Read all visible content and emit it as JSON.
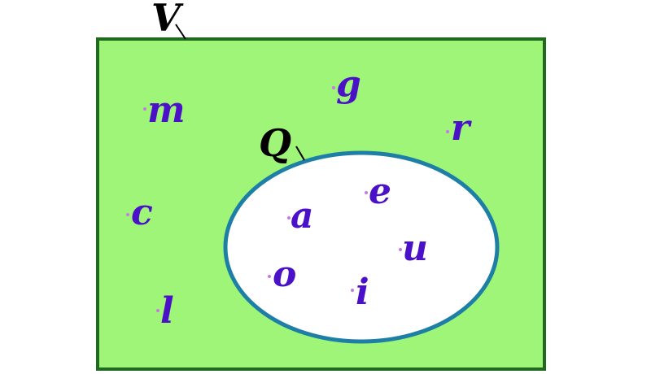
{
  "colors": {
    "universe_fill": "#9ef577",
    "universe_stroke": "#1f6a1f",
    "subset_fill": "#ffffff",
    "subset_stroke": "#1e7fa6",
    "element_text": "#4a11c9",
    "element_dot": "#c97ae0"
  },
  "universe": {
    "label": "V",
    "elements": [
      "g",
      "m",
      "r",
      "c",
      "l"
    ]
  },
  "subset": {
    "label": "Q",
    "elements": [
      "e",
      "a",
      "u",
      "o",
      "i"
    ]
  }
}
